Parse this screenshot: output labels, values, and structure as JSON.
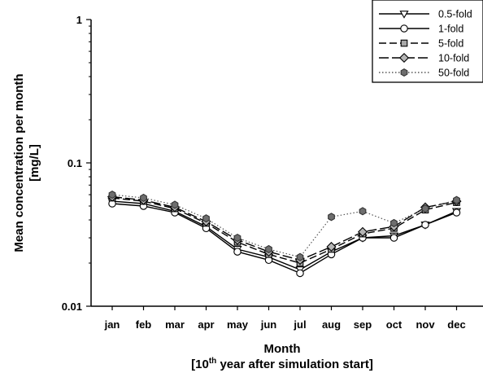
{
  "chart_data": {
    "type": "line",
    "yscale": "log",
    "ylim": [
      0.01,
      1
    ],
    "yticks": [
      {
        "value": 0.01,
        "label": "0.01"
      },
      {
        "value": 0.1,
        "label": "0.1"
      },
      {
        "value": 1,
        "label": "1"
      }
    ],
    "categories": [
      "jan",
      "feb",
      "mar",
      "apr",
      "may",
      "jun",
      "jul",
      "aug",
      "sep",
      "oct",
      "nov",
      "dec"
    ],
    "ylabel_line1": "Mean concentration per month",
    "ylabel_line2": "[mg/L]",
    "xlabel_line1": "Month",
    "xlabel_line2_pre": "[10",
    "xlabel_line2_sup": "th",
    "xlabel_line2_post": " year after simulation start]",
    "legend_position": "top-right",
    "grid": false,
    "series": [
      {
        "name": "0.5-fold",
        "marker": "triangle-down",
        "line": "solid",
        "color": "#000000",
        "fill": "#ffffff",
        "values": [
          0.054,
          0.052,
          0.046,
          0.036,
          0.025,
          0.022,
          0.018,
          0.024,
          0.03,
          0.031,
          0.037,
          0.046
        ]
      },
      {
        "name": "1-fold",
        "marker": "circle",
        "line": "solid",
        "color": "#000000",
        "fill": "#ffffff",
        "values": [
          0.052,
          0.05,
          0.045,
          0.035,
          0.024,
          0.021,
          0.017,
          0.023,
          0.03,
          0.03,
          0.037,
          0.045
        ]
      },
      {
        "name": "5-fold",
        "marker": "square",
        "line": "dash",
        "color": "#000000",
        "fill": "#a9a9a9",
        "values": [
          0.057,
          0.054,
          0.048,
          0.038,
          0.028,
          0.023,
          0.02,
          0.025,
          0.032,
          0.035,
          0.047,
          0.053
        ]
      },
      {
        "name": "10-fold",
        "marker": "diamond",
        "line": "longdash",
        "color": "#000000",
        "fill": "#b5b5b5",
        "values": [
          0.058,
          0.055,
          0.049,
          0.039,
          0.029,
          0.024,
          0.021,
          0.026,
          0.033,
          0.036,
          0.049,
          0.054
        ]
      },
      {
        "name": "50-fold",
        "marker": "hexagon",
        "line": "dot",
        "color": "#555555",
        "fill": "#6e6e6e",
        "values": [
          0.06,
          0.057,
          0.051,
          0.041,
          0.03,
          0.025,
          0.022,
          0.042,
          0.046,
          0.038,
          0.048,
          0.055
        ]
      }
    ]
  }
}
